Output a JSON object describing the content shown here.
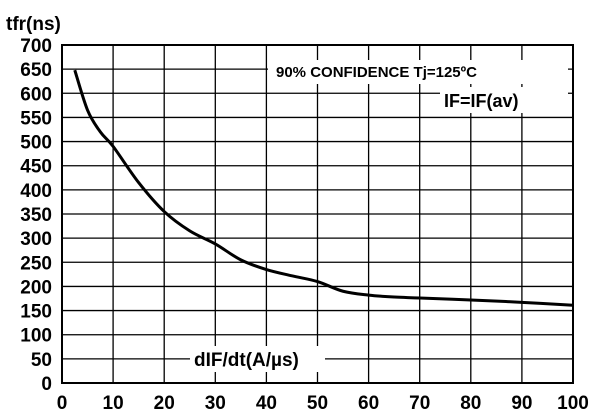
{
  "chart_data": {
    "type": "line",
    "title": "",
    "ylabel": "tfr(ns)",
    "xlabel": "dIF/dt(A/µs)",
    "xlim": [
      0,
      100
    ],
    "ylim": [
      0,
      700
    ],
    "x_ticks": [
      0,
      10,
      20,
      30,
      40,
      50,
      60,
      70,
      80,
      90,
      100
    ],
    "y_ticks": [
      0,
      50,
      100,
      150,
      200,
      250,
      300,
      350,
      400,
      450,
      500,
      550,
      600,
      650,
      700
    ],
    "grid": true,
    "annotations": [
      "90% CONFIDENCE Tj=125ºC",
      "IF=IF(av)"
    ],
    "series": [
      {
        "color": "#000000",
        "x": [
          2.5,
          5,
          7.5,
          10,
          15,
          20,
          25,
          30,
          35,
          40,
          45,
          50,
          55,
          60,
          65,
          70,
          80,
          90,
          100
        ],
        "y": [
          648,
          565,
          520,
          490,
          415,
          355,
          315,
          288,
          255,
          235,
          222,
          210,
          190,
          182,
          178,
          176,
          172,
          167,
          161
        ]
      }
    ]
  }
}
